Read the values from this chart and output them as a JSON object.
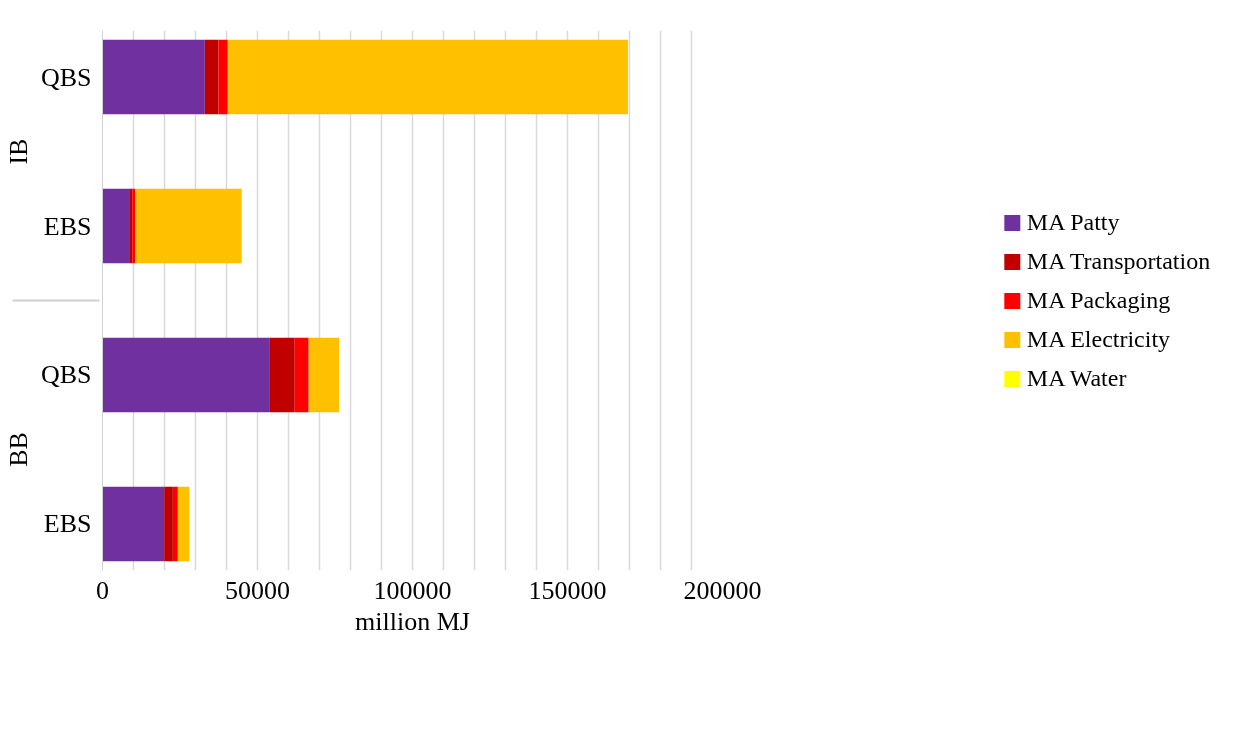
{
  "chart_data": {
    "type": "bar",
    "orientation": "horizontal",
    "stacked": true,
    "categories": [
      "QBS",
      "EBS",
      "QBS",
      "EBS"
    ],
    "annotations": [
      "IB",
      "BB"
    ],
    "xlabel": "million MJ",
    "xlim": [
      0,
      200000
    ],
    "xticks": [
      0,
      {
        "value": 10000,
        "label": null
      },
      {
        "value": 20000,
        "label": null
      },
      {
        "value": 30000,
        "label": null
      },
      {
        "value": 40000,
        "label": null
      },
      50000,
      {
        "value": 60000,
        "label": null
      },
      {
        "value": 70000,
        "label": null
      },
      {
        "value": 80000,
        "label": null
      },
      {
        "value": 90000,
        "label": null
      },
      100000,
      {
        "value": 110000,
        "label": null
      },
      {
        "value": 120000,
        "label": null
      },
      {
        "value": 130000,
        "label": null
      },
      {
        "value": 140000,
        "label": null
      },
      150000,
      {
        "value": 160000,
        "label": null
      },
      {
        "value": 170000,
        "label": null
      },
      {
        "value": 180000,
        "label": null
      },
      {
        "value": 190000,
        "label": null
      },
      200000
    ],
    "grid": "x",
    "legend": "right",
    "series": [
      {
        "name": "MA Patty",
        "color": "#7030a0",
        "values": [
          33000,
          8600,
          54000,
          19900
        ]
      },
      {
        "name": "MA Transportation",
        "color": "#c00000",
        "values": [
          4400,
          1000,
          8000,
          2800
        ]
      },
      {
        "name": "MA Packaging",
        "color": "#ff0000",
        "values": [
          3000,
          900,
          4500,
          1600
        ]
      },
      {
        "name": "MA Electricity",
        "color": "#ffc000",
        "values": [
          129100,
          34400,
          9800,
          3700
        ]
      },
      {
        "name": "MA Water",
        "color": "#ffff00",
        "values": [
          0,
          0,
          0,
          0
        ]
      }
    ]
  }
}
